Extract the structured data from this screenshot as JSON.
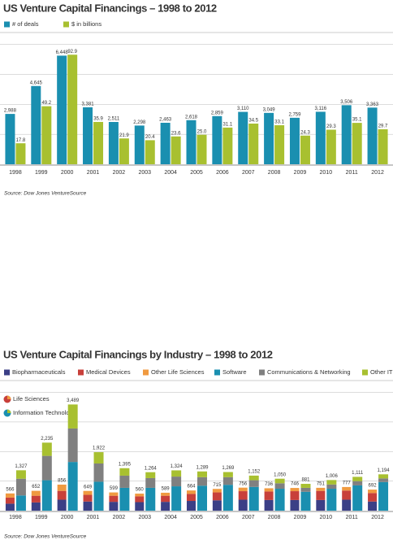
{
  "chart_data": [
    {
      "type": "bar",
      "title": "US Venture Capital Financings – 1998 to 2012",
      "source": "Source: Dow Jones VentureSource",
      "categories": [
        "1998",
        "1999",
        "2000",
        "2001",
        "2002",
        "2003",
        "2004",
        "2005",
        "2006",
        "2007",
        "2008",
        "2009",
        "2010",
        "2011",
        "2012"
      ],
      "series": [
        {
          "name": "# of deals",
          "color": "#1a8fb0",
          "values": [
            2988,
            4645,
            6448,
            3381,
            2511,
            2298,
            2463,
            2618,
            2859,
            3110,
            3049,
            2759,
            3116,
            3506,
            3363
          ],
          "value_labels": [
            "2,988",
            "4,645",
            "6,448",
            "3,381",
            "2,511",
            "2,298",
            "2,463",
            "2,618",
            "2,859",
            "3,110",
            "3,049",
            "2,759",
            "3,116",
            "3,506",
            "3,363"
          ]
        },
        {
          "name": "$ in billions",
          "color": "#a8c030",
          "axis": "y2",
          "values": [
            17.8,
            49.2,
            92.9,
            35.9,
            21.9,
            20.4,
            23.6,
            25.0,
            31.1,
            34.5,
            33.1,
            24.3,
            29.3,
            35.1,
            29.7
          ],
          "value_labels": [
            "17.8",
            "49.2",
            "92.9",
            "35.9",
            "21.9",
            "20.4",
            "23.6",
            "25.0",
            "31.1",
            "34.5",
            "33.1",
            "24.3",
            "29.3",
            "35.1",
            "29.7"
          ]
        }
      ],
      "ylim": [
        0,
        7000
      ],
      "y2lim": [
        0,
        100
      ],
      "grid": true
    },
    {
      "type": "stacked_bar",
      "title": "US Venture Capital Financings by Industry – 1998 to 2012",
      "source": "Source: Dow Jones VentureSource",
      "categories": [
        "1998",
        "1999",
        "2000",
        "2001",
        "2002",
        "2003",
        "2004",
        "2005",
        "2006",
        "2007",
        "2008",
        "2009",
        "2010",
        "2011",
        "2012"
      ],
      "groups": [
        {
          "name": "Life Sciences",
          "totals": [
            566,
            652,
            856,
            649,
            599,
            560,
            589,
            664,
            715,
            756,
            736,
            746,
            751,
            777,
            692
          ],
          "value_labels": [
            "566",
            "652",
            "856",
            "649",
            "599",
            "560",
            "589",
            "664",
            "715",
            "756",
            "736",
            "746",
            "751",
            "777",
            "692"
          ]
        },
        {
          "name": "Information Technology",
          "totals": [
            1327,
            2235,
            3489,
            1922,
            1395,
            1264,
            1324,
            1289,
            1269,
            1152,
            1050,
            881,
            1006,
            1111,
            1194
          ],
          "value_labels": [
            "1,327",
            "2,235",
            "3,489",
            "1,922",
            "1,395",
            "1,264",
            "1,324",
            "1,289",
            "1,269",
            "1,152",
            "1,050",
            "881",
            "1,006",
            "1,111",
            "1,194"
          ]
        }
      ],
      "series": [
        {
          "name": "Biopharmaceuticals",
          "color": "#3b3f86",
          "group": 0,
          "values": [
            230,
            270,
            360,
            300,
            290,
            280,
            290,
            320,
            340,
            360,
            350,
            350,
            350,
            360,
            300
          ]
        },
        {
          "name": "Medical Devices",
          "color": "#c8403a",
          "group": 0,
          "values": [
            200,
            220,
            290,
            220,
            200,
            190,
            200,
            230,
            260,
            280,
            280,
            290,
            300,
            300,
            280
          ]
        },
        {
          "name": "Other Life Sciences",
          "color": "#f09a40",
          "group": 0,
          "values": [
            136,
            162,
            206,
            129,
            109,
            90,
            99,
            114,
            115,
            116,
            106,
            106,
            101,
            117,
            112
          ]
        },
        {
          "name": "Software",
          "color": "#1a8fb0",
          "group": 1,
          "values": [
            500,
            1000,
            1600,
            950,
            750,
            750,
            800,
            820,
            850,
            780,
            720,
            620,
            720,
            830,
            940
          ]
        },
        {
          "name": "Communications & Networking",
          "color": "#808080",
          "group": 1,
          "values": [
            550,
            800,
            1100,
            600,
            400,
            320,
            320,
            280,
            250,
            220,
            180,
            130,
            140,
            140,
            120
          ]
        },
        {
          "name": "Other IT",
          "color": "#a8c030",
          "group": 1,
          "values": [
            277,
            435,
            789,
            372,
            245,
            194,
            204,
            189,
            169,
            152,
            150,
            131,
            146,
            141,
            134
          ]
        }
      ],
      "ylim": [
        0,
        3500
      ],
      "grid": true
    }
  ]
}
